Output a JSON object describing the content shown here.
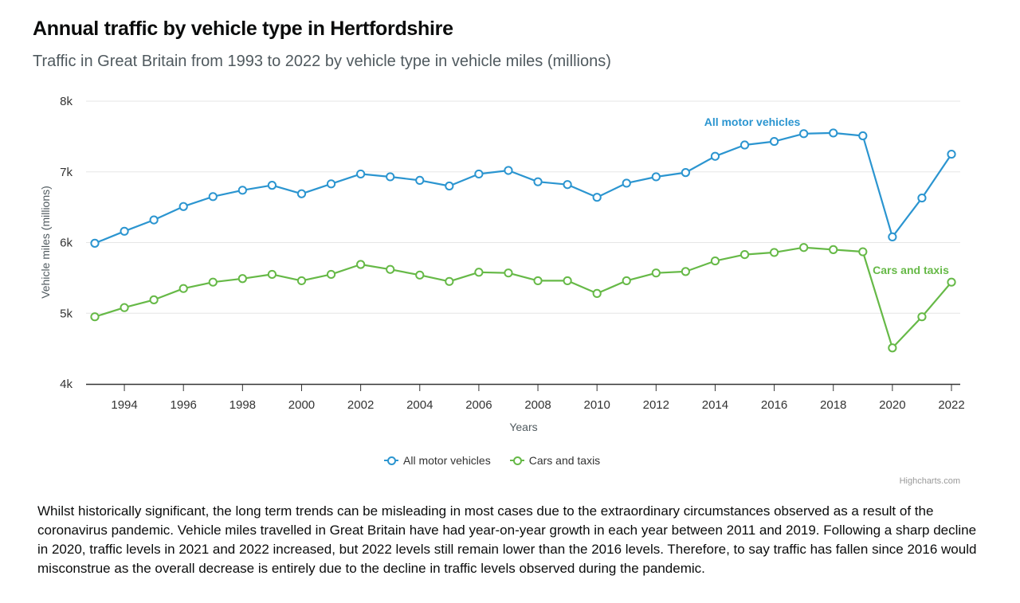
{
  "title": "Annual traffic by vehicle type in Hertfordshire",
  "subtitle": "Traffic in Great Britain from 1993 to 2022 by vehicle type in vehicle miles (millions)",
  "credits": "Highcharts.com",
  "note": "Whilst historically significant, the long term trends can be misleading in most cases due to the extraordinary circumstances observed as a result of the coronavirus pandemic. Vehicle miles travelled in Great Britain have had year-on-year growth in each year between 2011 and 2019. Following a sharp decline in 2020, traffic levels in 2021 and 2022 increased, but 2022 levels still remain lower than the 2016 levels. Therefore, to say traffic has fallen since 2016 would misconstrue as the overall decrease is entirely due to the decline in traffic levels observed during the pandemic.",
  "colors": {
    "all": "#2b95d0",
    "cars": "#66b947",
    "grid": "#e6e6e6",
    "axis": "#333333"
  },
  "chart_data": {
    "type": "line",
    "title": "Annual traffic by vehicle type in Hertfordshire",
    "xlabel": "Years",
    "ylabel": "Vehicle miles (millions)",
    "ylim": [
      4000,
      8000
    ],
    "yticks": [
      4000,
      5000,
      6000,
      7000,
      8000
    ],
    "ytick_labels": [
      "4k",
      "5k",
      "6k",
      "7k",
      "8k"
    ],
    "xlim": [
      1993,
      2022
    ],
    "xticks": [
      1994,
      1996,
      1998,
      2000,
      2002,
      2004,
      2006,
      2008,
      2010,
      2012,
      2014,
      2016,
      2018,
      2020,
      2022
    ],
    "grid": true,
    "legend_position": "bottom-center",
    "x": [
      1993,
      1994,
      1995,
      1996,
      1997,
      1998,
      1999,
      2000,
      2001,
      2002,
      2003,
      2004,
      2005,
      2006,
      2007,
      2008,
      2009,
      2010,
      2011,
      2012,
      2013,
      2014,
      2015,
      2016,
      2017,
      2018,
      2019,
      2020,
      2021,
      2022
    ],
    "series": [
      {
        "name": "All motor vehicles",
        "label": "All motor vehicles",
        "color": "#2b95d0",
        "values": [
          5990,
          6160,
          6320,
          6510,
          6650,
          6740,
          6810,
          6690,
          6830,
          6970,
          6930,
          6880,
          6800,
          6970,
          7020,
          6860,
          6820,
          6640,
          6840,
          6930,
          6990,
          7220,
          7380,
          7430,
          7540,
          7550,
          7510,
          6080,
          6630,
          7250
        ]
      },
      {
        "name": "Cars and taxis",
        "label": "Cars and taxis",
        "color": "#66b947",
        "values": [
          4950,
          5080,
          5190,
          5350,
          5440,
          5490,
          5550,
          5460,
          5550,
          5690,
          5620,
          5540,
          5450,
          5580,
          5570,
          5460,
          5460,
          5280,
          5460,
          5570,
          5590,
          5740,
          5830,
          5860,
          5930,
          5900,
          5870,
          4510,
          4950,
          5440
        ]
      }
    ]
  }
}
